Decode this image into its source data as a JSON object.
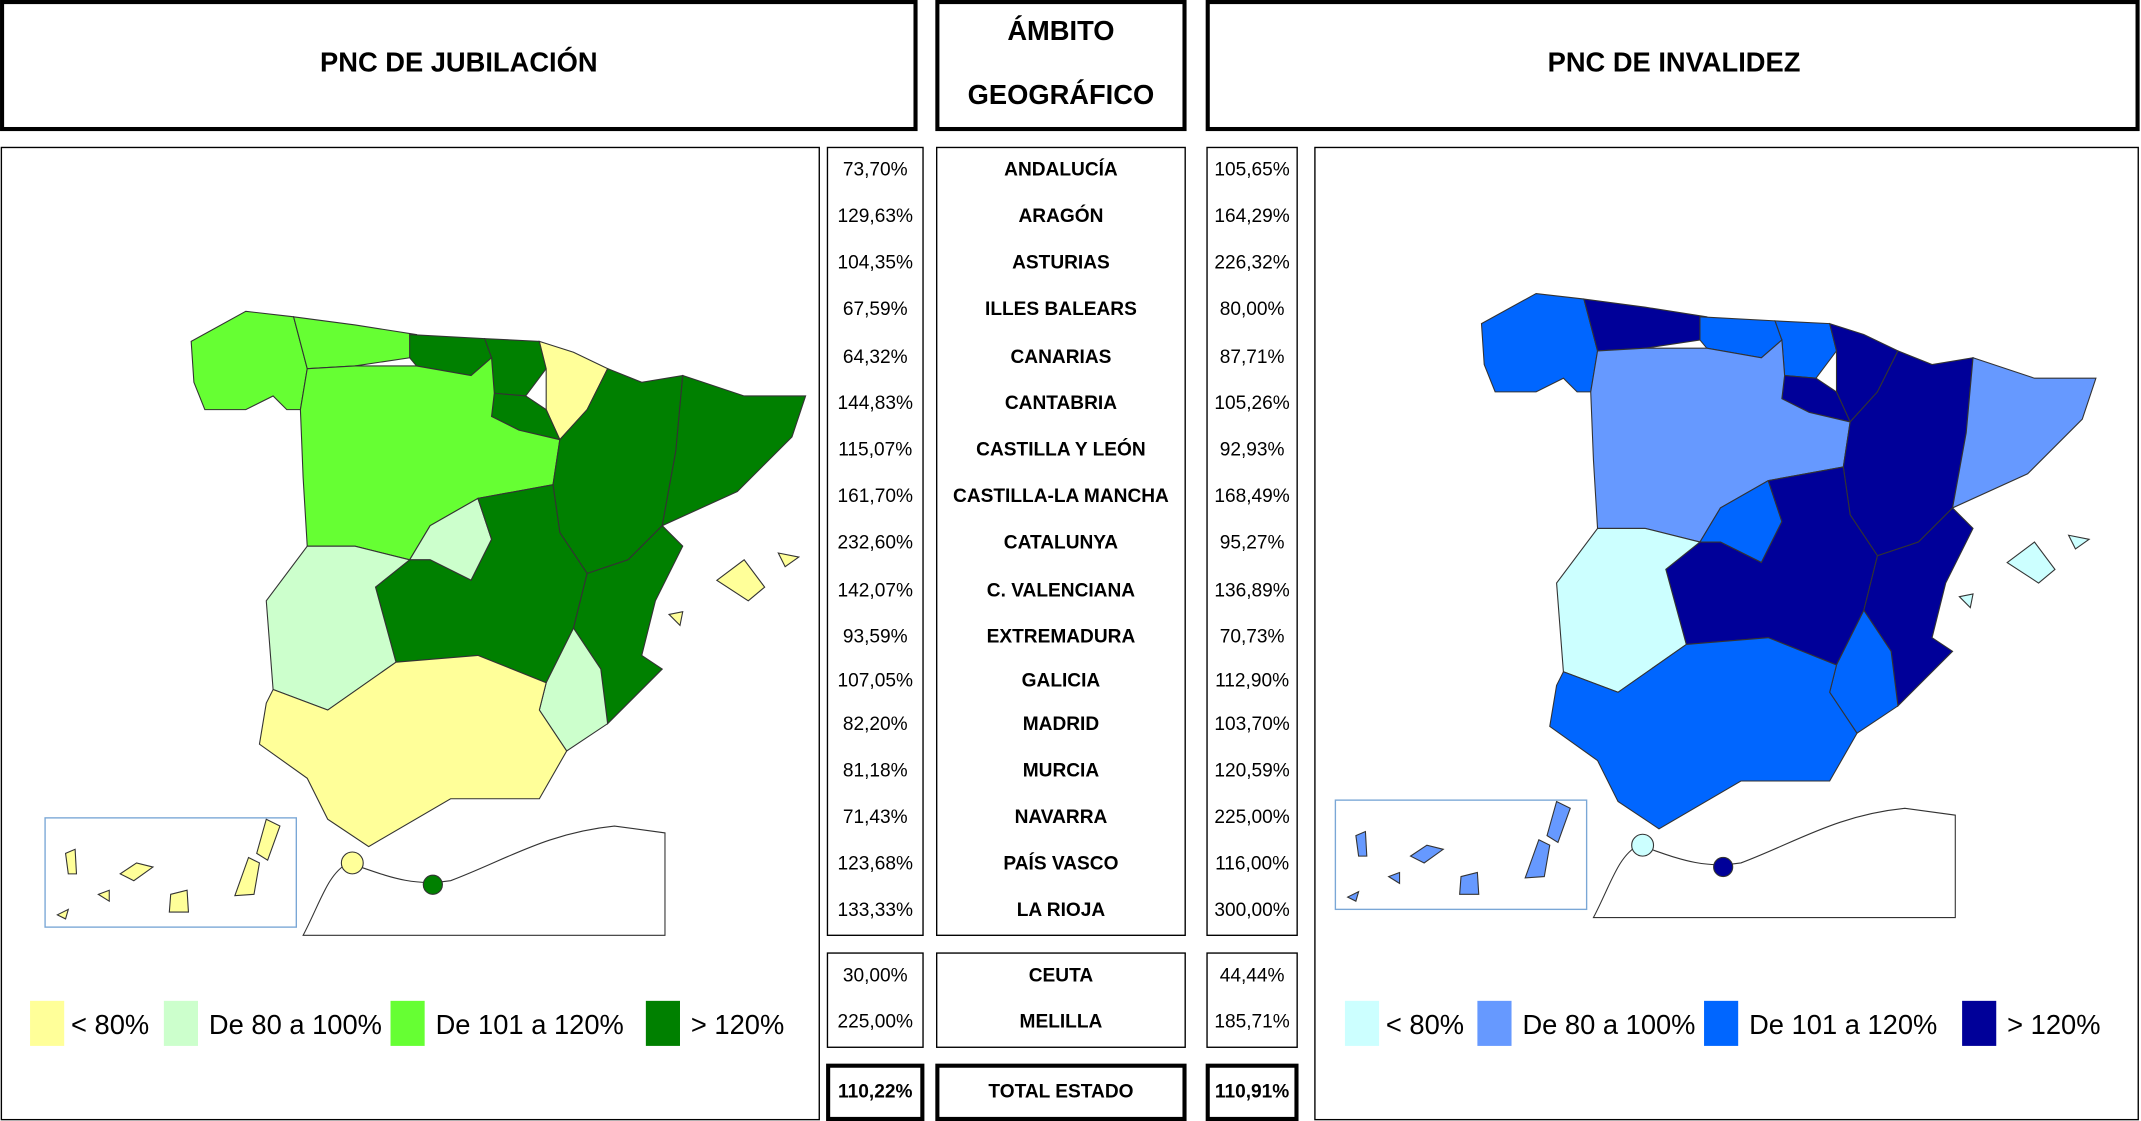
{
  "header": {
    "left": "PNC DE JUBILACIÓN",
    "middle": [
      "ÁMBITO",
      "GEOGRÁFICO"
    ],
    "right": "PNC DE INVALIDEZ"
  },
  "table": {
    "rows": [
      [
        "73,70%",
        "ANDALUCÍA",
        "105,65%"
      ],
      [
        "129,63%",
        "ARAGÓN",
        "164,29%"
      ],
      [
        "104,35%",
        "ASTURIAS",
        "226,32%"
      ],
      [
        "67,59%",
        "ILLES BALEARS",
        "80,00%"
      ],
      [
        "64,32%",
        "CANARIAS",
        "87,71%"
      ],
      [
        "144,83%",
        "CANTABRIA",
        "105,26%"
      ],
      [
        "115,07%",
        "CASTILLA Y LEÓN",
        "92,93%"
      ],
      [
        "161,70%",
        "CASTILLA-LA MANCHA",
        "168,49%"
      ],
      [
        "232,60%",
        "CATALUNYA",
        "95,27%"
      ],
      [
        "142,07%",
        "C. VALENCIANA",
        "136,89%"
      ],
      [
        "93,59%",
        "EXTREMADURA",
        "70,73%"
      ],
      [
        "107,05%",
        "GALICIA",
        "112,90%"
      ],
      [
        "82,20%",
        "MADRID",
        "103,70%"
      ],
      [
        "81,18%",
        "MURCIA",
        "120,59%"
      ],
      [
        "71,43%",
        "NAVARRA",
        "225,00%"
      ],
      [
        "123,68%",
        "PAÍS VASCO",
        "116,00%"
      ],
      [
        "133,33%",
        "LA RIOJA",
        "300,00%"
      ]
    ],
    "cities": [
      [
        "30,00%",
        "CEUTA",
        "44,44%"
      ],
      [
        "225,00%",
        "MELILLA",
        "185,71%"
      ]
    ],
    "total": [
      "110,22%",
      "TOTAL ESTADO",
      "110,91%"
    ]
  },
  "legend": {
    "jubilacion": [
      "< 80%",
      "De 80 a 100%",
      "De 101 a 120%",
      "> 120%"
    ],
    "invalidez": [
      "< 80%",
      "De 80 a 100%",
      "De 101 a 120%",
      "> 120%"
    ]
  }
}
